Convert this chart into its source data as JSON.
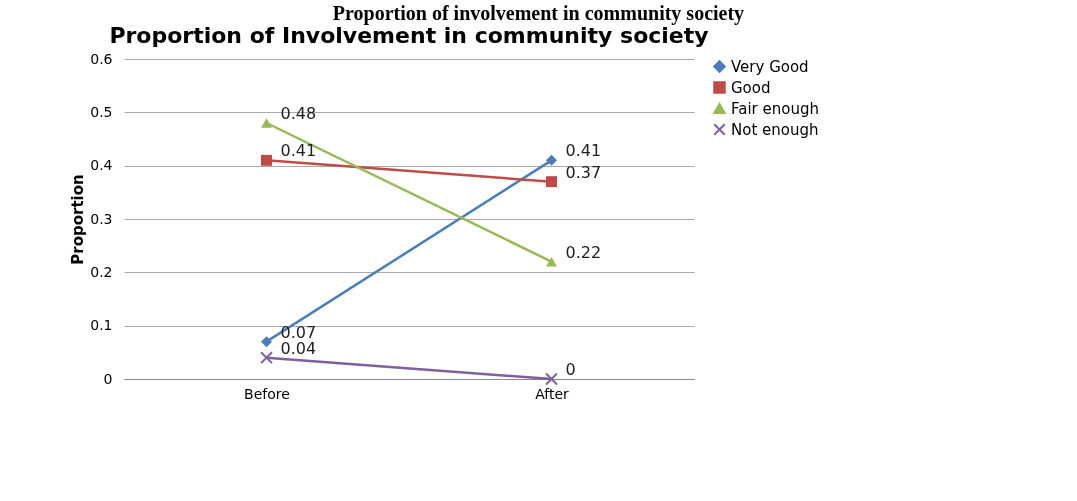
{
  "chart_data": {
    "type": "line",
    "title": "Proportion of Involvement in community society",
    "annotations": [
      "Proportion of involvement in community society"
    ],
    "ylabel": "Proportion",
    "categories": [
      "Before",
      "After"
    ],
    "series": [
      {
        "name": "Very Good",
        "color": "#4a7ebb",
        "marker": "diamond",
        "values": [
          0.07,
          0.41
        ]
      },
      {
        "name": "Good",
        "color": "#be4b48",
        "marker": "square",
        "values": [
          0.41,
          0.37
        ]
      },
      {
        "name": "Fair enough",
        "color": "#98b954",
        "marker": "triangle",
        "values": [
          0.48,
          0.22
        ]
      },
      {
        "name": "Not enough",
        "color": "#7d60a0",
        "marker": "cross",
        "values": [
          0.04,
          0
        ]
      }
    ],
    "ylim": [
      0,
      0.6
    ],
    "yticks": [
      0,
      0.1,
      0.2,
      0.3,
      0.4,
      0.5,
      0.6
    ],
    "grid": "y",
    "legend": "right",
    "data_labels": true
  }
}
